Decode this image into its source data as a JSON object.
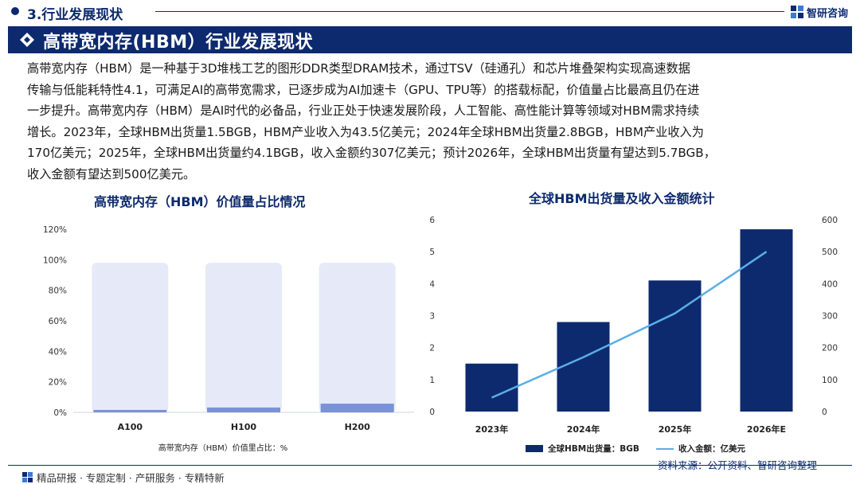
{
  "header": {
    "section": "3.行业发展现状",
    "brand": "智研咨询",
    "brand_icon": "grid-logo-icon"
  },
  "banner": {
    "title": "高带宽内存(HBM）行业发展现状",
    "icon": "diamond-icon"
  },
  "intro": {
    "lines": [
      "高带宽内存（HBM）是一种基于3D堆栈工艺的图形DDR类型DRAM技术，通过TSV（硅通孔）和芯片堆叠架构实现高速数据",
      "传输与低能耗特性4.1，可满足AI的高带宽需求，已逐步成为AI加速卡（GPU、TPU等）的搭载标配，价值量占比最高且仍在进",
      "一步提升。高带宽内存（HBM）是AI时代的必备品，行业正处于快速发展阶段，人工智能、高性能计算等领域对HBM需求持续",
      "增长。2023年，全球HBM出货量1.5BGB，HBM产业收入为43.5亿美元；2024年全球HBM出货量2.8BGB，HBM产业收入为",
      "170亿美元；2025年，全球HBM出货量约4.1BGB，收入金额约307亿美元；预计2026年，全球HBM出货量有望达到5.7BGB，",
      "收入金额有望达到500亿美元。"
    ]
  },
  "chart_data": [
    {
      "type": "bar",
      "title": "高带宽内存（HBM）价值量占比情况",
      "categories": [
        "A100",
        "H100",
        "H200"
      ],
      "values": [
        1.6,
        3.2,
        5.7
      ],
      "background_value": 98,
      "ylim": [
        0,
        120
      ],
      "yticks": [
        "0%",
        "20%",
        "40%",
        "60%",
        "80%",
        "100%",
        "120%"
      ],
      "xlabel": "高带宽内存（HBM）价值里占比：%",
      "colors": {
        "bar": "#7a92d6",
        "background": "#e6eaf8"
      }
    },
    {
      "type": "bar+line",
      "title": "全球HBM出货量及收入金额统计",
      "categories": [
        "2023年",
        "2024年",
        "2025年",
        "2026年E"
      ],
      "series": [
        {
          "name": "全球HBM出货量：BGB",
          "type": "bar",
          "axis": "left",
          "values": [
            1.5,
            2.8,
            4.1,
            5.7
          ],
          "color": "#0d2a6e"
        },
        {
          "name": "收入金额：亿美元",
          "type": "line",
          "axis": "right",
          "values": [
            43.5,
            170,
            307,
            500
          ],
          "color": "#5aaee6"
        }
      ],
      "ylim_left": [
        0,
        6
      ],
      "yticks_left": [
        "0",
        "1",
        "2",
        "3",
        "4",
        "5",
        "6"
      ],
      "ylim_right": [
        0,
        600
      ],
      "yticks_right": [
        "0",
        "100",
        "200",
        "300",
        "400",
        "500",
        "600"
      ]
    }
  ],
  "footer": {
    "text": "精品研报 · 专题定制 · 产研服务 · 专精特新",
    "source": "资料来源：公开资料、智研咨询整理"
  }
}
